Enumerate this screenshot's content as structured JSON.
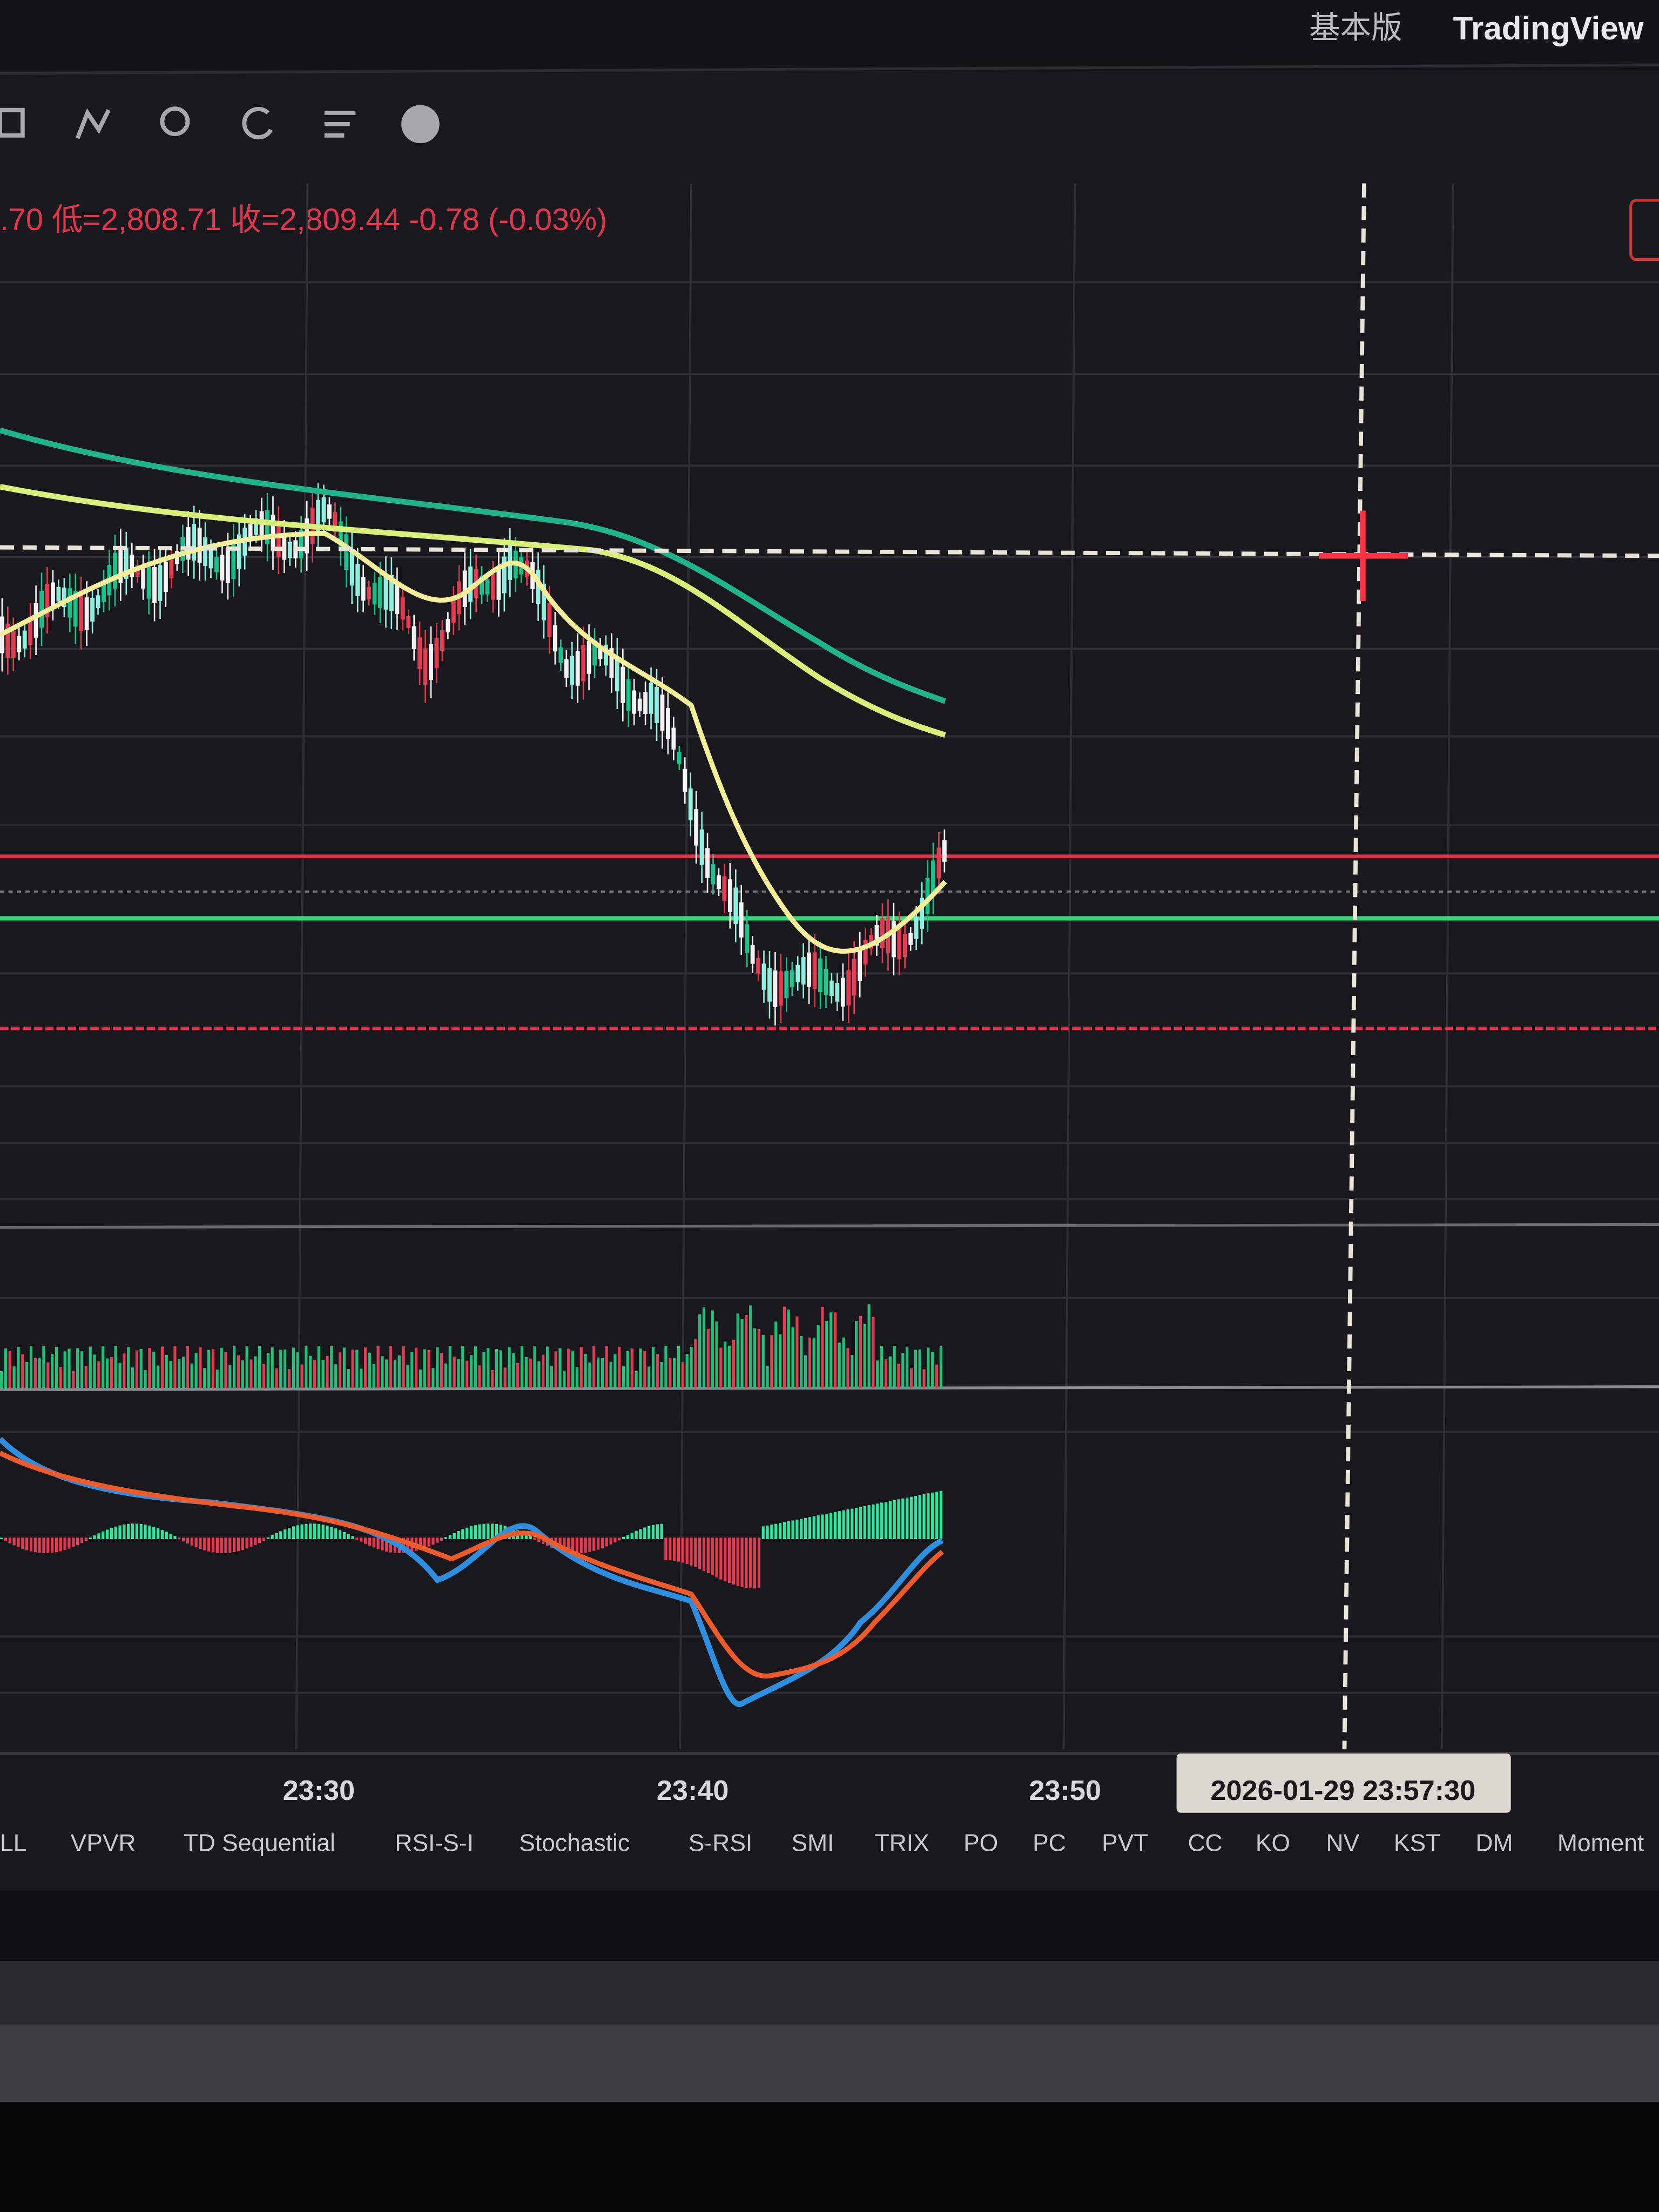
{
  "header": {
    "edition": "基本版",
    "brand": "TradingView"
  },
  "legend": {
    "ohlc": ".70 低=2,808.71 收=2,809.44 -0.78 (-0.03%)"
  },
  "time_axis": {
    "labels": [
      "23:30",
      "23:40",
      "23:50"
    ],
    "crosshair": "2026-01-29  23:57:30"
  },
  "indicator_tabs": [
    "LL",
    "VPVR",
    "TD Sequential",
    "RSI-S-I",
    "Stochastic",
    "S-RSI",
    "SMI",
    "TRIX",
    "PO",
    "PC",
    "PVT",
    "CC",
    "KO",
    "NV",
    "KST",
    "DM",
    "Moment"
  ]
}
